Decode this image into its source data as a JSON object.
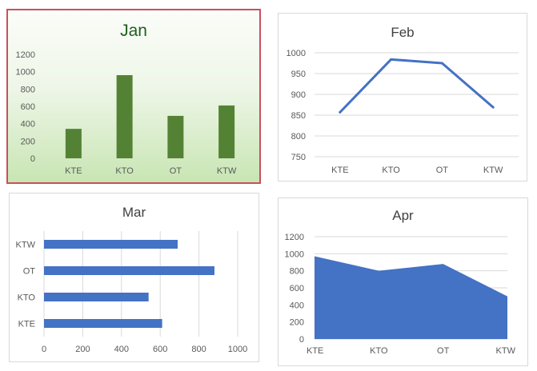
{
  "chart_data": [
    {
      "id": "jan",
      "type": "bar",
      "title": "Jan",
      "categories": [
        "KTE",
        "KTO",
        "OT",
        "KTW"
      ],
      "values": [
        340,
        960,
        490,
        610
      ],
      "ylim": [
        0,
        1200
      ],
      "yticks": [
        0,
        200,
        400,
        600,
        800,
        1000,
        1200
      ],
      "grid": false,
      "colors": {
        "bars": "#548235",
        "title": "#1e5e1e"
      }
    },
    {
      "id": "feb",
      "type": "line",
      "title": "Feb",
      "categories": [
        "KTE",
        "KTO",
        "OT",
        "KTW"
      ],
      "values": [
        857,
        984,
        975,
        869
      ],
      "ylim": [
        750,
        1000
      ],
      "yticks": [
        750,
        800,
        850,
        900,
        950,
        1000
      ],
      "grid": true,
      "colors": {
        "line": "#4472c4"
      }
    },
    {
      "id": "mar",
      "type": "bar",
      "orientation": "horizontal",
      "title": "Mar",
      "categories": [
        "KTE",
        "KTO",
        "OT",
        "KTW"
      ],
      "values": [
        610,
        540,
        880,
        690
      ],
      "xlim": [
        0,
        1000
      ],
      "xticks": [
        0,
        200,
        400,
        600,
        800,
        1000
      ],
      "grid": true,
      "colors": {
        "bars": "#4472c4"
      }
    },
    {
      "id": "apr",
      "type": "area",
      "title": "Apr",
      "categories": [
        "KTE",
        "KTO",
        "OT",
        "KTW"
      ],
      "values": [
        970,
        800,
        880,
        500
      ],
      "ylim": [
        0,
        1200
      ],
      "yticks": [
        0,
        200,
        400,
        600,
        800,
        1000,
        1200
      ],
      "grid": true,
      "colors": {
        "area": "#4472c4"
      }
    }
  ]
}
